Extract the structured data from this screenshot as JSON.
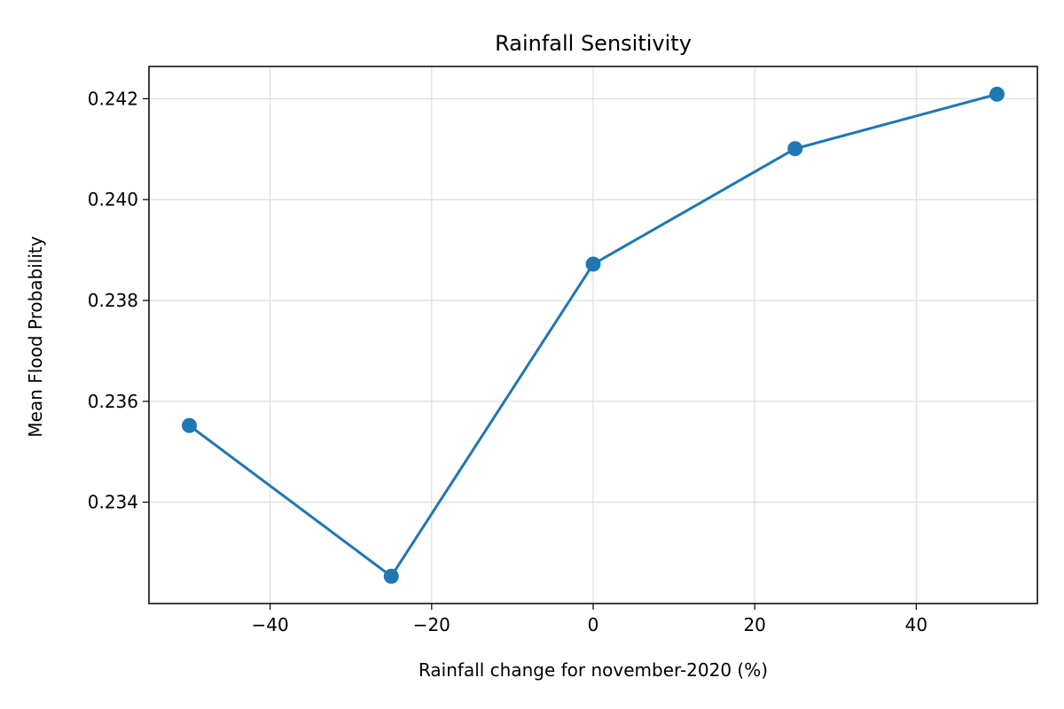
{
  "chart_data": {
    "type": "line",
    "title": "Rainfall Sensitivity",
    "xlabel": "Rainfall change for november-2020 (%)",
    "ylabel": "Mean Flood Probability",
    "x": [
      -50,
      -25,
      0,
      25,
      50
    ],
    "series": [
      {
        "values": [
          0.23552,
          0.23253,
          0.23872,
          0.24101,
          0.24209
        ]
      }
    ],
    "xlim": [
      -55,
      55
    ],
    "ylim": [
      0.23199,
      0.24264
    ],
    "xticks": [
      -40,
      -20,
      0,
      20,
      40
    ],
    "xtick_labels": [
      "−40",
      "−20",
      "0",
      "20",
      "40"
    ],
    "yticks": [
      0.234,
      0.236,
      0.238,
      0.24,
      0.242
    ],
    "ytick_labels": [
      "0.234",
      "0.236",
      "0.238",
      "0.240",
      "0.242"
    ],
    "grid": true,
    "line_color": "#1f77b4",
    "marker": "circle"
  }
}
